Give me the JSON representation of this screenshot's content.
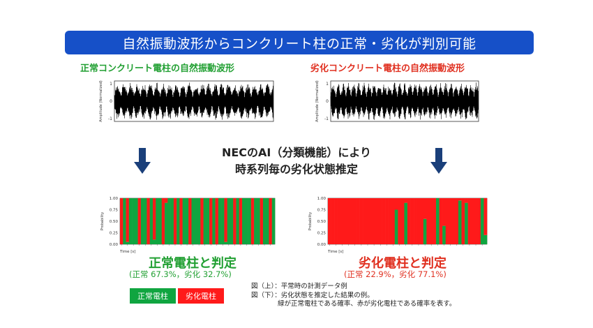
{
  "banner": {
    "title": "自然振動波形からコンクリート柱の正常・劣化が判別可能"
  },
  "waves": {
    "normal_title": "正常コンクリート電柱の自然振動波形",
    "degraded_title": "劣化コンクリート電柱の自然振動波形",
    "ylabel": "Amplitude (Normalized)",
    "yticks": [
      "1",
      "0",
      "-1"
    ]
  },
  "center": {
    "line1": "NECのAI（分類機能）により",
    "line2": "時系列毎の劣化状態推定"
  },
  "prob_axis": {
    "ylabel": "Probability",
    "xlabel": "Time [s]",
    "yticks": [
      "1.00",
      "0.75",
      "0.50",
      "0.25",
      "0.00"
    ]
  },
  "verdicts": {
    "normal": {
      "label": "正常電柱と判定",
      "pct": "(正常 67.3%，劣化 32.7%)"
    },
    "degraded": {
      "label": "劣化電柱と判定",
      "pct": "(正常 22.9%，劣化 77.1%)"
    }
  },
  "legend": {
    "green": "正常電柱",
    "red": "劣化電柱"
  },
  "captions": {
    "line1": "図（上）：平常時の計測データ例",
    "line2": "図（下）：劣化状態を推定した結果の例。",
    "line3": "緑が正常電柱である確率、赤が劣化電柱である確率を表す。"
  },
  "colors": {
    "banner": "#1650c8",
    "green": "#10a540",
    "red": "#ff1a1a",
    "arrow": "#1a3f7a"
  },
  "chart_data": [
    {
      "type": "area",
      "id": "normal_probability",
      "xlabel": "Time [s]",
      "ylabel": "Probability",
      "ylim": [
        0,
        1
      ],
      "series": [
        {
          "name": "正常電柱",
          "values": [
            0.0,
            1.0,
            0.05,
            1.0,
            1.0,
            1.0,
            0.0,
            1.0,
            1.0,
            0.0,
            1.0,
            0.1,
            1.0,
            1.0,
            0.0,
            0.9,
            1.0,
            1.0,
            0.0,
            1.0,
            0.0,
            1.0,
            1.0,
            0.0,
            1.0,
            1.0,
            1.0,
            0.0,
            1.0,
            1.0,
            0.0,
            1.0,
            0.0,
            1.0,
            1.0,
            0.05,
            1.0,
            1.0,
            0.0,
            1.0,
            0.0,
            1.0,
            1.0,
            1.0,
            0.0,
            1.0,
            1.0,
            0.0,
            1.0,
            1.0,
            0.0,
            1.0
          ]
        }
      ]
    },
    {
      "type": "area",
      "id": "degraded_probability",
      "xlabel": "Time [s]",
      "ylabel": "Probability",
      "ylim": [
        0,
        1
      ],
      "series": [
        {
          "name": "正常電柱",
          "values": [
            0.0,
            0.0,
            0.0,
            0.0,
            0.0,
            0.0,
            0.0,
            0.0,
            0.0,
            0.0,
            0.0,
            0.0,
            0.0,
            0.0,
            0.0,
            0.0,
            0.0,
            0.0,
            0.0,
            0.0,
            0.0,
            0.75,
            0.0,
            0.0,
            0.9,
            0.0,
            0.0,
            0.0,
            0.0,
            0.0,
            0.55,
            0.0,
            0.0,
            0.0,
            1.0,
            0.0,
            0.4,
            0.0,
            0.0,
            0.0,
            0.0,
            0.95,
            0.0,
            0.9,
            0.0,
            0.0,
            0.0,
            0.0,
            1.0,
            0.2
          ]
        }
      ]
    }
  ]
}
